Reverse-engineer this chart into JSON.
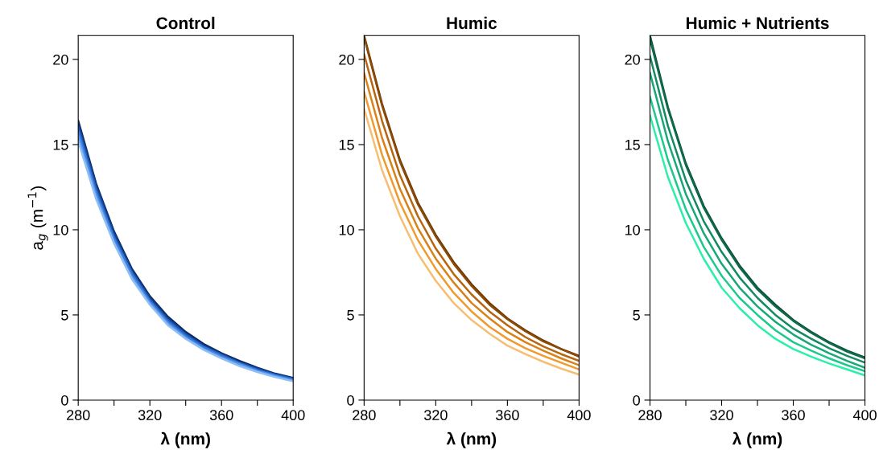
{
  "chart_data": [
    {
      "type": "line",
      "title": "Control",
      "xlabel": "λ (nm)",
      "ylabel": "a$_{g}$ (m$^{−1}$)",
      "x": [
        280,
        290,
        300,
        310,
        320,
        330,
        340,
        350,
        360,
        370,
        380,
        390,
        400
      ],
      "xlim": [
        280,
        400
      ],
      "xticks": [
        280,
        {
          "value": 300,
          "label": null
        },
        320,
        {
          "value": 340,
          "label": null
        },
        360,
        {
          "value": 380,
          "label": null
        },
        400
      ],
      "ylim": [
        0,
        21.4
      ],
      "yticks": [
        0,
        5,
        10,
        15,
        20
      ],
      "grid": false,
      "legend": false,
      "series": [
        {
          "color": "#0b2a63",
          "values": [
            16.4,
            12.7,
            9.9,
            7.7,
            6.1,
            4.9,
            4.0,
            3.3,
            2.75,
            2.3,
            1.9,
            1.55,
            1.3
          ]
        },
        {
          "color": "#123f8c",
          "values": [
            16.2,
            12.6,
            9.8,
            7.6,
            6.0,
            4.8,
            3.9,
            3.2,
            2.7,
            2.2,
            1.85,
            1.5,
            1.25
          ]
        },
        {
          "color": "#1f5bbf",
          "values": [
            16.0,
            12.4,
            9.6,
            7.5,
            5.9,
            4.7,
            3.85,
            3.15,
            2.65,
            2.2,
            1.8,
            1.5,
            1.25
          ]
        },
        {
          "color": "#3a7ad9",
          "values": [
            15.8,
            12.2,
            9.5,
            7.4,
            5.8,
            4.6,
            3.75,
            3.1,
            2.6,
            2.15,
            1.75,
            1.45,
            1.2
          ]
        },
        {
          "color": "#5c9ae8",
          "values": [
            15.5,
            12.0,
            9.3,
            7.2,
            5.7,
            4.5,
            3.65,
            3.0,
            2.5,
            2.1,
            1.7,
            1.4,
            1.15
          ]
        },
        {
          "color": "#8dbff5",
          "values": [
            15.2,
            11.8,
            9.2,
            7.1,
            5.6,
            4.4,
            3.6,
            2.95,
            2.45,
            2.0,
            1.65,
            1.35,
            1.1
          ]
        }
      ]
    },
    {
      "type": "line",
      "title": "Humic",
      "xlabel": "λ (nm)",
      "x": [
        280,
        290,
        300,
        310,
        320,
        330,
        340,
        350,
        360,
        370,
        380,
        390,
        400
      ],
      "xlim": [
        280,
        400
      ],
      "xticks": [
        280,
        {
          "value": 300,
          "label": null
        },
        320,
        {
          "value": 340,
          "label": null
        },
        360,
        {
          "value": 380,
          "label": null
        },
        400
      ],
      "ylim": [
        0,
        21.4
      ],
      "yticks": [
        0,
        5,
        10,
        15,
        20
      ],
      "grid": false,
      "legend": false,
      "series": [
        {
          "color": "#6b3502",
          "values": [
            21.4,
            17.4,
            14.1,
            11.6,
            9.7,
            8.1,
            6.8,
            5.7,
            4.8,
            4.1,
            3.5,
            3.0,
            2.6
          ]
        },
        {
          "color": "#8a4a08",
          "values": [
            21.3,
            17.3,
            14.0,
            11.5,
            9.6,
            8.0,
            6.7,
            5.6,
            4.75,
            4.05,
            3.45,
            3.0,
            2.55
          ]
        },
        {
          "color": "#b8650f",
          "values": [
            20.3,
            16.4,
            13.2,
            10.8,
            8.9,
            7.4,
            6.2,
            5.2,
            4.4,
            3.7,
            3.15,
            2.7,
            2.3
          ]
        },
        {
          "color": "#d9821a",
          "values": [
            19.2,
            15.4,
            12.4,
            10.1,
            8.3,
            6.9,
            5.7,
            4.8,
            4.0,
            3.4,
            2.9,
            2.45,
            2.05
          ]
        },
        {
          "color": "#f09a2e",
          "values": [
            18.1,
            14.4,
            11.6,
            9.4,
            7.7,
            6.3,
            5.2,
            4.3,
            3.6,
            3.05,
            2.6,
            2.2,
            1.8
          ]
        },
        {
          "color": "#f7be72",
          "values": [
            17.1,
            13.5,
            10.8,
            8.6,
            7.0,
            5.7,
            4.7,
            3.9,
            3.2,
            2.7,
            2.25,
            1.85,
            1.5
          ]
        }
      ]
    },
    {
      "type": "line",
      "title": "Humic + Nutrients",
      "xlabel": "λ (nm)",
      "x": [
        280,
        290,
        300,
        310,
        320,
        330,
        340,
        350,
        360,
        370,
        380,
        390,
        400
      ],
      "xlim": [
        280,
        400
      ],
      "xticks": [
        280,
        {
          "value": 300,
          "label": null
        },
        320,
        {
          "value": 340,
          "label": null
        },
        360,
        {
          "value": 380,
          "label": null
        },
        400
      ],
      "ylim": [
        0,
        21.4
      ],
      "yticks": [
        0,
        5,
        10,
        15,
        20
      ],
      "grid": false,
      "legend": false,
      "series": [
        {
          "color": "#0b4f37",
          "values": [
            21.4,
            17.2,
            13.9,
            11.4,
            9.5,
            7.9,
            6.6,
            5.6,
            4.7,
            4.0,
            3.4,
            2.9,
            2.5
          ]
        },
        {
          "color": "#0f6a4a",
          "values": [
            21.2,
            17.1,
            13.8,
            11.3,
            9.4,
            7.8,
            6.5,
            5.5,
            4.65,
            3.95,
            3.35,
            2.85,
            2.45
          ]
        },
        {
          "color": "#138a62",
          "values": [
            20.2,
            16.1,
            12.9,
            10.5,
            8.7,
            7.2,
            6.0,
            5.0,
            4.2,
            3.6,
            3.05,
            2.6,
            2.2
          ]
        },
        {
          "color": "#18a878",
          "values": [
            19.2,
            15.2,
            12.1,
            9.8,
            8.0,
            6.6,
            5.5,
            4.6,
            3.85,
            3.25,
            2.75,
            2.3,
            1.9
          ]
        },
        {
          "color": "#1fc88e",
          "values": [
            17.8,
            14.1,
            11.2,
            9.0,
            7.3,
            6.0,
            5.0,
            4.1,
            3.4,
            2.9,
            2.45,
            2.05,
            1.7
          ]
        },
        {
          "color": "#2cf0a8",
          "values": [
            16.7,
            13.1,
            10.4,
            8.3,
            6.6,
            5.4,
            4.4,
            3.6,
            3.0,
            2.55,
            2.15,
            1.8,
            1.45
          ]
        }
      ]
    }
  ]
}
